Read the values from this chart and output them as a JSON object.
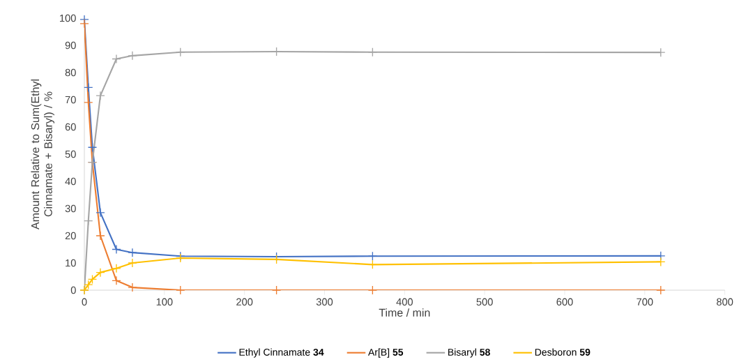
{
  "chart_data": {
    "type": "line",
    "xlabel": "Time / min",
    "ylabel": "Amount Relative to Sum(Ethyl Cinnamate + Bisaryl) / %",
    "x": [
      0,
      5,
      10,
      20,
      40,
      60,
      120,
      240,
      360,
      720
    ],
    "series": [
      {
        "name": "Ethyl Cinnamate **34**",
        "color": "#4472c4",
        "values": [
          99.5,
          74.5,
          52.5,
          28.5,
          15,
          13.8,
          12.5,
          12.3,
          12.5,
          12.6
        ]
      },
      {
        "name": "Ar[B] **55**",
        "color": "#ed7d31",
        "values": [
          98,
          69,
          47,
          20,
          3.5,
          1,
          0,
          0,
          0,
          0
        ]
      },
      {
        "name": "Bisaryl **58**",
        "color": "#a5a5a5",
        "values": [
          0,
          25.5,
          47,
          71.5,
          85,
          86.2,
          87.5,
          87.7,
          87.5,
          87.4
        ]
      },
      {
        "name": "Desboron **59**",
        "color": "#ffc000",
        "values": [
          0,
          2,
          4,
          6.5,
          8,
          10,
          11.8,
          11.3,
          9.4,
          10.4
        ]
      }
    ],
    "xlim": [
      0,
      800
    ],
    "xticks": [
      0,
      100,
      200,
      300,
      400,
      500,
      600,
      700,
      800
    ],
    "ylim": [
      0,
      100
    ],
    "yticks": [
      0,
      10,
      20,
      30,
      40,
      50,
      60,
      70,
      80,
      90,
      100
    ],
    "grid": false,
    "legend": "bottom",
    "marker": "cross",
    "line_style": "solid"
  }
}
